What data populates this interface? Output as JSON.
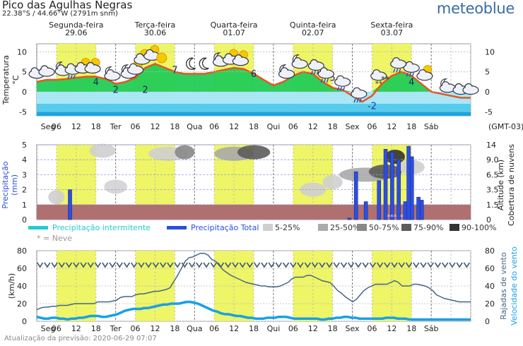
{
  "header": {
    "title": "Pico das Agulhas Negras",
    "subtitle": "22.38°S / 44.66°W (2791m snm)",
    "logo": "meteoblue"
  },
  "footer": "Atualização da previsão: 2020-06-29 07:07",
  "colors": {
    "temp_line": "#e8561e",
    "warm_fill": "#22cc55",
    "cold_fill": "#55ccee",
    "daylight": "#eef566",
    "rain": "#2c4fe0",
    "ground": "#b07070",
    "wind": "#446688",
    "gust": "#446688",
    "windspeed": "#18a0e8"
  },
  "chart_data": [
    {
      "type": "area",
      "name": "temperature",
      "ylabel": "Temperatura °C",
      "ylim": [
        -6,
        12
      ],
      "yticks_left": [
        -5,
        0,
        5,
        10
      ],
      "yticks_right": [
        -5,
        0,
        5,
        10
      ],
      "day_labels": [
        {
          "name": "Segunda-feira",
          "date": "29.06"
        },
        {
          "name": "Terça-feira",
          "date": "30.06"
        },
        {
          "name": "Quarta-feira",
          "date": "01.07"
        },
        {
          "name": "Quinta-feira",
          "date": "02.07"
        },
        {
          "name": "Sexta-feira",
          "date": "03.07"
        }
      ],
      "x_hours": [
        0,
        3,
        6,
        9,
        12,
        15,
        18,
        21,
        24,
        27,
        30,
        33,
        36,
        39,
        42,
        45,
        48,
        51,
        54,
        57,
        60,
        63,
        66,
        69,
        72,
        75,
        78,
        81,
        84,
        87,
        90,
        93,
        96,
        99,
        102,
        105,
        108,
        111,
        114,
        117,
        120,
        123,
        126,
        129,
        132
      ],
      "temperature": [
        2.5,
        3,
        3,
        3.2,
        3.5,
        3.8,
        3.8,
        3.2,
        2,
        2.5,
        3.5,
        6,
        7,
        6,
        5,
        4.5,
        4.5,
        4.5,
        5,
        5.5,
        6,
        5.7,
        4.5,
        3,
        1.6,
        2.5,
        4,
        5,
        4.5,
        2.5,
        1,
        0.5,
        -1,
        -2.5,
        -1,
        2,
        4,
        5,
        4,
        2,
        0,
        -0.5,
        -1,
        -1.5,
        -1.5
      ],
      "temp_labels": [
        {
          "h": 18,
          "t": "4"
        },
        {
          "h": 24,
          "t": "2"
        },
        {
          "h": 33,
          "t": "2"
        },
        {
          "h": 42,
          "t": "7"
        },
        {
          "h": 66,
          "t": "6"
        },
        {
          "h": 90,
          "t": "5"
        },
        {
          "h": 102,
          "t": "-2"
        },
        {
          "h": 114,
          "t": "4"
        }
      ],
      "icons": [
        {
          "h": 0,
          "k": "cloud"
        },
        {
          "h": 3,
          "k": "cloud"
        },
        {
          "h": 8,
          "k": "moon-cloud"
        },
        {
          "h": 11,
          "k": "rain"
        },
        {
          "h": 14,
          "k": "sun-cloud"
        },
        {
          "h": 17,
          "k": "sun-cloud"
        },
        {
          "h": 23,
          "k": "moon-cloud"
        },
        {
          "h": 28,
          "k": "moon-cloud"
        },
        {
          "h": 30,
          "k": "sun-cloud"
        },
        {
          "h": 32,
          "k": "sun-cloud"
        },
        {
          "h": 35,
          "k": "sun-cloud"
        },
        {
          "h": 38,
          "k": "sun"
        },
        {
          "h": 47,
          "k": "moon"
        },
        {
          "h": 51,
          "k": "moon"
        },
        {
          "h": 56,
          "k": "moon-cloud"
        },
        {
          "h": 59,
          "k": "sun-cloud"
        },
        {
          "h": 62,
          "k": "sun-cloud"
        },
        {
          "h": 76,
          "k": "moon-cloud"
        },
        {
          "h": 80,
          "k": "moon-cloud"
        },
        {
          "h": 85,
          "k": "rain"
        },
        {
          "h": 88,
          "k": "rain"
        },
        {
          "h": 93,
          "k": "rain"
        },
        {
          "h": 98,
          "k": "rain"
        },
        {
          "h": 104,
          "k": "snow"
        },
        {
          "h": 106,
          "k": "snow-label"
        },
        {
          "h": 110,
          "k": "rain"
        },
        {
          "h": 114,
          "k": "rain"
        },
        {
          "h": 118,
          "k": "sun-cloud"
        },
        {
          "h": 125,
          "k": "moon-cloud"
        },
        {
          "h": 129,
          "k": "cloud"
        },
        {
          "h": 132,
          "k": "cloud"
        }
      ]
    },
    {
      "type": "bar",
      "name": "precipitation",
      "ylabel": "Precipitação (mm)",
      "ylabel_right": "Altitude (km) Cobertura de nuvens",
      "ylim": [
        0,
        5
      ],
      "yticks_left": [
        0,
        1,
        2,
        3,
        4,
        5
      ],
      "yticks_right": [
        "0",
        "1.5",
        "3.5",
        "6.5",
        "9.0",
        "14"
      ],
      "bars": [
        {
          "h": 10,
          "v": 2
        },
        {
          "h": 95,
          "v": 0.1
        },
        {
          "h": 97,
          "v": 3.2
        },
        {
          "h": 100,
          "v": 1.2
        },
        {
          "h": 104,
          "v": 2.6
        },
        {
          "h": 106,
          "v": 4.7
        },
        {
          "h": 108,
          "v": 4.5
        },
        {
          "h": 110,
          "v": 4
        },
        {
          "h": 112,
          "v": 1.2
        },
        {
          "h": 113,
          "v": 4.9
        },
        {
          "h": 114,
          "v": 4.2
        },
        {
          "h": 116,
          "v": 1.5
        },
        {
          "h": 117,
          "v": 1.3
        }
      ],
      "snow_marks": [
        107,
        108,
        109,
        111
      ],
      "legend": [
        {
          "label": "Precipitação intermitente",
          "color": "#22ccd0",
          "kind": "line"
        },
        {
          "label": "Precipitação Total",
          "color": "#2c4fe0",
          "kind": "line"
        },
        {
          "label": "5-25%",
          "color": "#cfcfcf",
          "kind": "box"
        },
        {
          "label": "25-50%",
          "color": "#aaaaaa",
          "kind": "box"
        },
        {
          "label": "50-75%",
          "color": "#888888",
          "kind": "box"
        },
        {
          "label": "75-90%",
          "color": "#5c5c5c",
          "kind": "box"
        },
        {
          "label": "90-100%",
          "color": "#333333",
          "kind": "box"
        }
      ],
      "legend_snow": "* = Neve"
    },
    {
      "type": "line",
      "name": "wind",
      "ylabel": "(km/h)",
      "ylabel_right_1": "Rajadas de vento",
      "ylabel_right_2": "Velocidade do vento",
      "ylim": [
        0,
        80
      ],
      "yticks": [
        0,
        20,
        40,
        60,
        80
      ],
      "gusts": [
        13,
        15,
        16,
        16,
        17,
        17,
        18,
        18,
        18,
        19,
        20,
        20,
        20,
        20,
        20,
        20,
        22,
        22,
        22,
        22,
        23,
        24,
        27,
        28,
        28,
        28,
        30,
        31,
        31,
        32,
        33,
        34,
        34,
        35,
        36,
        38,
        45,
        52,
        60,
        68,
        72,
        73,
        75,
        77,
        77,
        75,
        70,
        68,
        63,
        58,
        55,
        52,
        50,
        48,
        46,
        44,
        43,
        42,
        41,
        40,
        40,
        39,
        39,
        39,
        40,
        42,
        44,
        48,
        50,
        50,
        50,
        52,
        52,
        50,
        48,
        46,
        45,
        44,
        40,
        35,
        32,
        28,
        25,
        22,
        25,
        30,
        35,
        38,
        40,
        42,
        42,
        42,
        42,
        44,
        46,
        44,
        40,
        40,
        40,
        42,
        42,
        41,
        40,
        38,
        35,
        30,
        28,
        26,
        25,
        24,
        23,
        22,
        22,
        22,
        22
      ],
      "windspeed": [
        5,
        4,
        3,
        3,
        4,
        4,
        3,
        3,
        2,
        3,
        3,
        4,
        4,
        5,
        6,
        6,
        6,
        5,
        5,
        6,
        7,
        8,
        10,
        12,
        13,
        14,
        14,
        14,
        15,
        15,
        16,
        17,
        18,
        19,
        19,
        20,
        20,
        20,
        21,
        22,
        22,
        21,
        20,
        18,
        16,
        14,
        12,
        11,
        9,
        8,
        8,
        7,
        6,
        6,
        5,
        4,
        4,
        3,
        3,
        3,
        4,
        4,
        4,
        5,
        5,
        5,
        4,
        3,
        3,
        3,
        3,
        3,
        3,
        3,
        2,
        2,
        3,
        3,
        4,
        4,
        5,
        5,
        4,
        4,
        3,
        3,
        3,
        3,
        3,
        3,
        3,
        4,
        4,
        4,
        3,
        3,
        3,
        2,
        2,
        2,
        2,
        2,
        2,
        2,
        2,
        2,
        2,
        2,
        2,
        2,
        2,
        2,
        2,
        2
      ],
      "direction": "NW"
    }
  ],
  "x_axis": {
    "labels": [
      "Seg",
      "06",
      "12",
      "18",
      "Ter",
      "06",
      "12",
      "18",
      "Qua",
      "06",
      "12",
      "18",
      "Qui",
      "06",
      "12",
      "18",
      "Sex",
      "06",
      "12",
      "18",
      "Sáb"
    ],
    "timezone": "(GMT-03)"
  }
}
